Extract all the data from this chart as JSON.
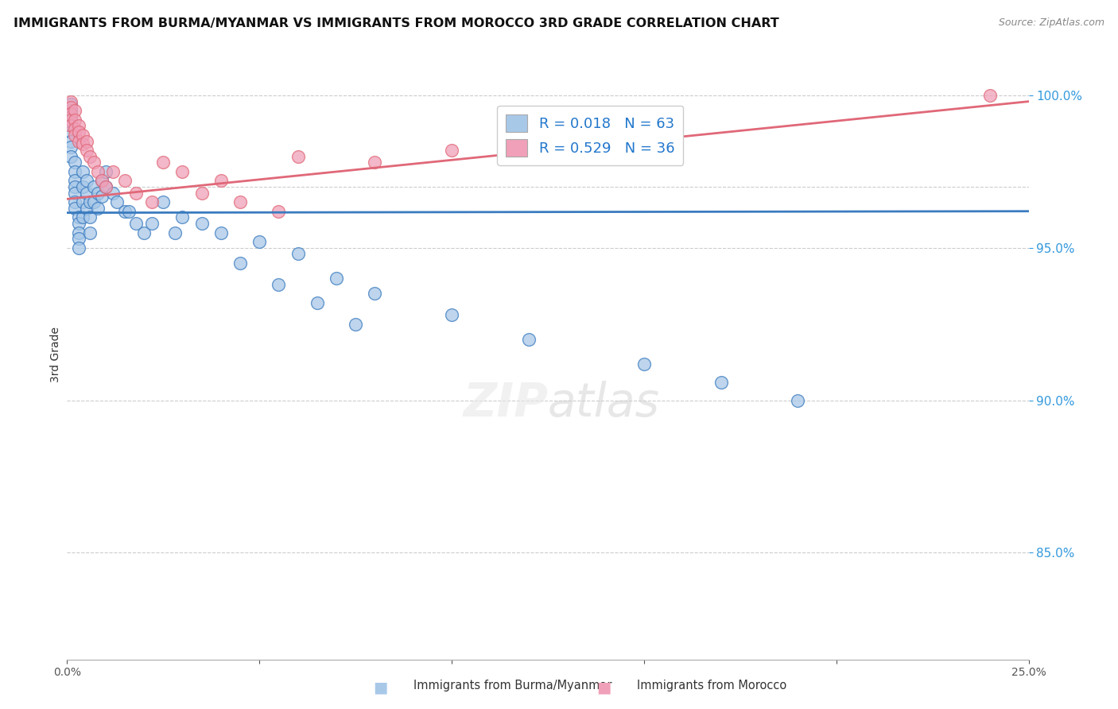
{
  "title": "IMMIGRANTS FROM BURMA/MYANMAR VS IMMIGRANTS FROM MOROCCO 3RD GRADE CORRELATION CHART",
  "source": "Source: ZipAtlas.com",
  "ylabel": "3rd Grade",
  "y_ticks": [
    0.85,
    0.9,
    0.95,
    1.0
  ],
  "x_lim": [
    0.0,
    0.25
  ],
  "y_lim": [
    0.815,
    1.015
  ],
  "blue_R": 0.018,
  "blue_N": 63,
  "pink_R": 0.529,
  "pink_N": 36,
  "blue_color": "#a8c8e8",
  "pink_color": "#f0a0b8",
  "blue_line_color": "#3a7bbf",
  "pink_line_color": "#e06878",
  "legend_label_blue": "Immigrants from Burma/Myanmar",
  "legend_label_pink": "Immigrants from Morocco",
  "blue_x": [
    0.001,
    0.001,
    0.001,
    0.001,
    0.001,
    0.001,
    0.001,
    0.001,
    0.002,
    0.002,
    0.002,
    0.002,
    0.002,
    0.002,
    0.002,
    0.003,
    0.003,
    0.003,
    0.003,
    0.003,
    0.004,
    0.004,
    0.004,
    0.004,
    0.005,
    0.005,
    0.005,
    0.006,
    0.006,
    0.006,
    0.007,
    0.007,
    0.008,
    0.008,
    0.009,
    0.009,
    0.01,
    0.01,
    0.012,
    0.013,
    0.015,
    0.018,
    0.02,
    0.025,
    0.03,
    0.035,
    0.04,
    0.05,
    0.06,
    0.07,
    0.08,
    0.1,
    0.12,
    0.15,
    0.17,
    0.19,
    0.045,
    0.055,
    0.065,
    0.075,
    0.016,
    0.022,
    0.028
  ],
  "blue_y": [
    0.997,
    0.995,
    0.993,
    0.99,
    0.988,
    0.985,
    0.983,
    0.98,
    0.978,
    0.975,
    0.972,
    0.97,
    0.968,
    0.965,
    0.963,
    0.96,
    0.958,
    0.955,
    0.953,
    0.95,
    0.975,
    0.97,
    0.965,
    0.96,
    0.972,
    0.968,
    0.963,
    0.965,
    0.96,
    0.955,
    0.97,
    0.965,
    0.968,
    0.963,
    0.972,
    0.967,
    0.975,
    0.97,
    0.968,
    0.965,
    0.962,
    0.958,
    0.955,
    0.965,
    0.96,
    0.958,
    0.955,
    0.952,
    0.948,
    0.94,
    0.935,
    0.928,
    0.92,
    0.912,
    0.906,
    0.9,
    0.945,
    0.938,
    0.932,
    0.925,
    0.962,
    0.958,
    0.955
  ],
  "pink_x": [
    0.001,
    0.001,
    0.001,
    0.001,
    0.001,
    0.002,
    0.002,
    0.002,
    0.002,
    0.003,
    0.003,
    0.003,
    0.004,
    0.004,
    0.005,
    0.005,
    0.006,
    0.007,
    0.008,
    0.009,
    0.01,
    0.012,
    0.015,
    0.018,
    0.022,
    0.025,
    0.03,
    0.04,
    0.06,
    0.08,
    0.035,
    0.045,
    0.055,
    0.1,
    0.15,
    0.24
  ],
  "pink_y": [
    0.998,
    0.996,
    0.994,
    0.992,
    0.99,
    0.995,
    0.992,
    0.989,
    0.987,
    0.99,
    0.988,
    0.985,
    0.987,
    0.984,
    0.985,
    0.982,
    0.98,
    0.978,
    0.975,
    0.972,
    0.97,
    0.975,
    0.972,
    0.968,
    0.965,
    0.978,
    0.975,
    0.972,
    0.98,
    0.978,
    0.968,
    0.965,
    0.962,
    0.982,
    0.985,
    1.0
  ],
  "blue_line_x": [
    0.0,
    0.25
  ],
  "blue_line_y": [
    0.9615,
    0.962
  ],
  "pink_line_x": [
    0.0,
    0.25
  ],
  "pink_line_y": [
    0.966,
    0.998
  ]
}
